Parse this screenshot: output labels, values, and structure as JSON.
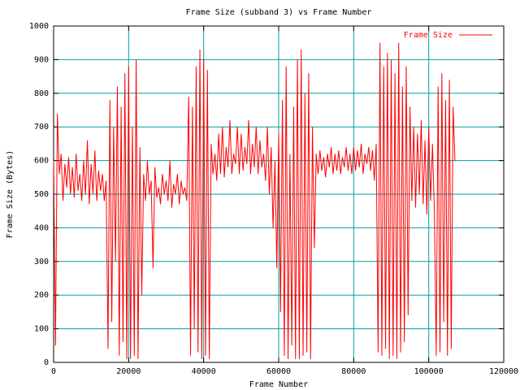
{
  "chart_data": {
    "type": "line",
    "title": "Frame Size (subband 3) vs Frame Number",
    "xlabel": "Frame Number",
    "ylabel": "Frame Size (Bytes)",
    "xlim": [
      0,
      120000
    ],
    "xticks": [
      0,
      20000,
      40000,
      60000,
      80000,
      100000,
      120000
    ],
    "ylim": [
      0,
      1000
    ],
    "yticks": [
      0,
      100,
      200,
      300,
      400,
      500,
      600,
      700,
      800,
      900,
      1000
    ],
    "grid": true,
    "grid_color": "#00a0a0",
    "legend": "top right",
    "series": [
      {
        "name": "Frame Size",
        "color": "#ff0000",
        "x": [
          0,
          500,
          1000,
          1500,
          2000,
          2500,
          3000,
          3500,
          4000,
          4500,
          5000,
          5500,
          6000,
          6500,
          7000,
          7500,
          8000,
          8500,
          9000,
          9500,
          10000,
          10500,
          11000,
          11500,
          12000,
          12500,
          13000,
          13500,
          14000,
          14500,
          15000,
          15500,
          16000,
          16500,
          17000,
          17500,
          18000,
          18500,
          19000,
          19500,
          20000,
          20500,
          21000,
          21500,
          22000,
          22500,
          23000,
          23500,
          24000,
          24500,
          25000,
          25500,
          26000,
          26500,
          27000,
          27500,
          28000,
          28500,
          29000,
          29500,
          30000,
          30500,
          31000,
          31500,
          32000,
          32500,
          33000,
          33500,
          34000,
          34500,
          35000,
          35500,
          36000,
          36500,
          37000,
          37500,
          38000,
          38500,
          39000,
          39500,
          40000,
          40500,
          41000,
          41500,
          42000,
          42500,
          43000,
          43500,
          44000,
          44500,
          45000,
          45500,
          46000,
          46500,
          47000,
          47500,
          48000,
          48500,
          49000,
          49500,
          50000,
          50500,
          51000,
          51500,
          52000,
          52500,
          53000,
          53500,
          54000,
          54500,
          55000,
          55500,
          56000,
          56500,
          57000,
          57500,
          58000,
          58500,
          59000,
          59500,
          60000,
          60500,
          61000,
          61500,
          62000,
          62500,
          63000,
          63500,
          64000,
          64500,
          65000,
          65500,
          66000,
          66500,
          67000,
          67500,
          68000,
          68500,
          69000,
          69500,
          70000,
          70500,
          71000,
          71500,
          72000,
          72500,
          73000,
          73500,
          74000,
          74500,
          75000,
          75500,
          76000,
          76500,
          77000,
          77500,
          78000,
          78500,
          79000,
          79500,
          80000,
          80500,
          81000,
          81500,
          82000,
          82500,
          83000,
          83500,
          84000,
          84500,
          85000,
          85500,
          86000,
          86500,
          87000,
          87500,
          88000,
          88500,
          89000,
          89500,
          90000,
          90500,
          91000,
          91500,
          92000,
          92500,
          93000,
          93500,
          94000,
          94500,
          95000,
          95500,
          96000,
          96500,
          97000,
          97500,
          98000,
          98500,
          99000,
          99500,
          100000,
          100500,
          101000,
          101500,
          102000,
          102500,
          103000,
          103500,
          104000,
          104500,
          105000,
          105500,
          106000,
          106500,
          107000
        ],
        "values": [
          600,
          50,
          740,
          560,
          620,
          480,
          590,
          520,
          610,
          500,
          580,
          490,
          620,
          510,
          560,
          480,
          600,
          500,
          660,
          470,
          590,
          500,
          630,
          480,
          570,
          510,
          560,
          480,
          540,
          40,
          780,
          120,
          700,
          300,
          820,
          20,
          760,
          60,
          860,
          10,
          880,
          10,
          700,
          20,
          900,
          10,
          640,
          200,
          560,
          480,
          600,
          500,
          540,
          280,
          580,
          490,
          520,
          470,
          560,
          500,
          540,
          480,
          600,
          460,
          530,
          500,
          560,
          470,
          540,
          500,
          520,
          480,
          790,
          20,
          760,
          100,
          880,
          30,
          930,
          10,
          900,
          20,
          870,
          10,
          650,
          560,
          620,
          540,
          680,
          560,
          700,
          550,
          640,
          580,
          720,
          560,
          620,
          590,
          700,
          560,
          680,
          570,
          640,
          590,
          720,
          560,
          650,
          580,
          700,
          560,
          660,
          580,
          620,
          540,
          700,
          500,
          640,
          400,
          600,
          280,
          680,
          150,
          780,
          20,
          880,
          10,
          620,
          50,
          760,
          10,
          900,
          10,
          930,
          20,
          800,
          30,
          860,
          10,
          700,
          340,
          620,
          560,
          630,
          570,
          610,
          550,
          620,
          580,
          640,
          560,
          620,
          570,
          630,
          560,
          610,
          580,
          640,
          570,
          620,
          560,
          640,
          570,
          630,
          580,
          650,
          560,
          620,
          590,
          640,
          570,
          630,
          540,
          650,
          30,
          950,
          20,
          880,
          40,
          920,
          10,
          900,
          20,
          860,
          10,
          950,
          30,
          820,
          60,
          880,
          140,
          760,
          480,
          700,
          460,
          680,
          500,
          720,
          470,
          660,
          440,
          700,
          480,
          650,
          450,
          20,
          820,
          30,
          860,
          120,
          780,
          20,
          840,
          40,
          760,
          600
        ]
      }
    ]
  }
}
